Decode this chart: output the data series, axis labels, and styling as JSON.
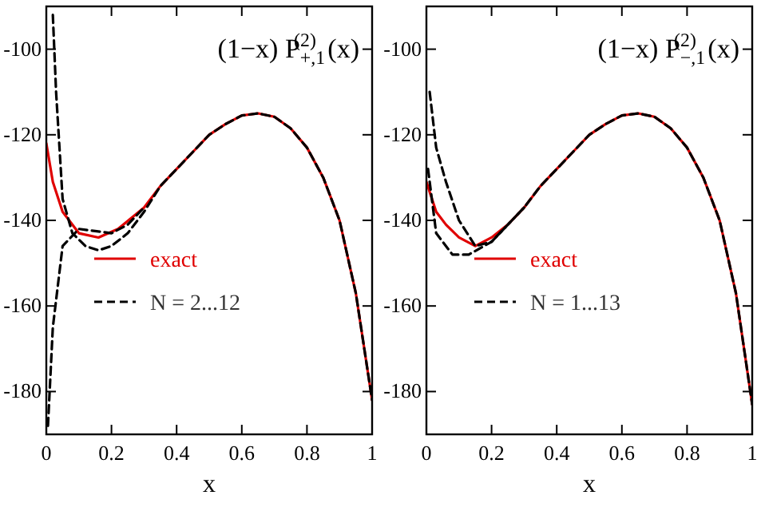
{
  "chart_data": [
    {
      "type": "line",
      "xlabel": "x",
      "annotations": [
        "(1−x) P$_{+,1}$$^{(2)}$ (x)"
      ],
      "xlim": [
        0,
        1
      ],
      "ylim": [
        -190,
        -90
      ],
      "xticks": [
        0,
        0.2,
        0.4,
        0.6,
        0.8,
        1
      ],
      "yticks": [
        -100,
        -120,
        -140,
        -160,
        -180
      ],
      "legend": "bottom left",
      "series": [
        {
          "name": "exact",
          "color": "#e00000",
          "line_style": "solid",
          "x": [
            0,
            0.02,
            0.05,
            0.1,
            0.16,
            0.22,
            0.3,
            0.35,
            0.4,
            0.45,
            0.5,
            0.55,
            0.6,
            0.65,
            0.7,
            0.75,
            0.8,
            0.85,
            0.9,
            0.95,
            1
          ],
          "values": [
            -122,
            -131,
            -138,
            -143,
            -144,
            -142,
            -137,
            -132,
            -128,
            -124,
            -120,
            -117.5,
            -115.5,
            -115,
            -115.8,
            -118.5,
            -123,
            -130,
            -140,
            -157,
            -182
          ]
        },
        {
          "name": "N = 2...12",
          "color": "#000000",
          "line_style": "dashed",
          "x": [
            0.02,
            0.03,
            0.05,
            0.08,
            0.12,
            0.16,
            0.2,
            0.25,
            0.3,
            0.35,
            0.4,
            0.45,
            0.5,
            0.55,
            0.6,
            0.65,
            0.7,
            0.75,
            0.8,
            0.85,
            0.9,
            0.95,
            1
          ],
          "values": [
            -92,
            -110,
            -135,
            -143,
            -146,
            -147,
            -146,
            -143,
            -138,
            -132,
            -128,
            -124,
            -120,
            -117.5,
            -115.5,
            -115,
            -115.8,
            -118.5,
            -123,
            -130,
            -140,
            -157,
            -182
          ]
        },
        {
          "color": "#000000",
          "line_style": "dashed",
          "x": [
            0.005,
            0.02,
            0.05,
            0.1,
            0.15,
            0.2,
            0.25,
            0.3
          ],
          "values": [
            -188,
            -165,
            -146,
            -142,
            -142.5,
            -143,
            -141,
            -137
          ]
        }
      ]
    },
    {
      "type": "line",
      "xlabel": "x",
      "annotations": [
        "(1−x) P$_{−,1}$$^{(2)}$ (x)"
      ],
      "xlim": [
        0,
        1
      ],
      "ylim": [
        -190,
        -90
      ],
      "xticks": [
        0,
        0.2,
        0.4,
        0.6,
        0.8,
        1
      ],
      "yticks": [
        -100,
        -120,
        -140,
        -160,
        -180
      ],
      "legend": "bottom left",
      "series": [
        {
          "name": "exact",
          "color": "#e00000",
          "line_style": "solid",
          "x": [
            0,
            0.03,
            0.06,
            0.1,
            0.15,
            0.2,
            0.25,
            0.3,
            0.35,
            0.4,
            0.45,
            0.5,
            0.55,
            0.6,
            0.65,
            0.7,
            0.75,
            0.8,
            0.85,
            0.9,
            0.95,
            1
          ],
          "values": [
            -131,
            -138,
            -141,
            -144,
            -146,
            -144,
            -141,
            -137,
            -132,
            -128,
            -124,
            -120,
            -117.5,
            -115.5,
            -115,
            -115.8,
            -118.5,
            -123,
            -130,
            -140,
            -157,
            -183
          ]
        },
        {
          "name": "N = 1...13",
          "color": "#000000",
          "line_style": "dashed",
          "x": [
            0.01,
            0.03,
            0.06,
            0.1,
            0.15,
            0.2,
            0.25,
            0.3,
            0.35,
            0.4,
            0.45,
            0.5,
            0.55,
            0.6,
            0.65,
            0.7,
            0.75,
            0.8,
            0.85,
            0.9,
            0.95,
            1
          ],
          "values": [
            -110,
            -123,
            -131,
            -140,
            -146,
            -145,
            -141,
            -137,
            -132,
            -128,
            -124,
            -120,
            -117.5,
            -115.5,
            -115,
            -115.8,
            -118.5,
            -123,
            -130,
            -140,
            -157,
            -183
          ]
        },
        {
          "color": "#000000",
          "line_style": "dashed",
          "x": [
            0.005,
            0.03,
            0.08,
            0.13,
            0.2,
            0.25,
            0.3
          ],
          "values": [
            -128,
            -143,
            -148,
            -148,
            -145,
            -141,
            -137
          ]
        }
      ]
    }
  ]
}
